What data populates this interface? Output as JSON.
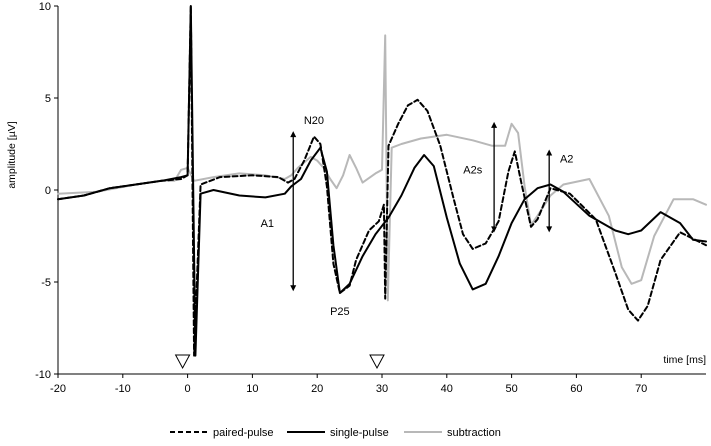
{
  "chart_data": {
    "type": "line",
    "xlabel": "time [ms]",
    "ylabel": "amplitude [µV]",
    "xlim": [
      -20,
      80
    ],
    "ylim": [
      -10,
      10
    ],
    "x_ticks": [
      -20,
      -10,
      0,
      10,
      20,
      30,
      40,
      50,
      60,
      70
    ],
    "y_ticks": [
      -10,
      -5,
      0,
      5,
      10
    ],
    "grid": false,
    "legend_position": "bottom",
    "stimulus_markers": [
      0,
      30
    ],
    "series": [
      {
        "name": "paired-pulse",
        "color": "#000000",
        "dash": "5,3",
        "points": [
          [
            -20,
            -0.5
          ],
          [
            -16,
            -0.3
          ],
          [
            -12,
            0.1
          ],
          [
            -8,
            0.3
          ],
          [
            -4,
            0.5
          ],
          [
            -1,
            0.6
          ],
          [
            0,
            0.8
          ],
          [
            0.5,
            10
          ],
          [
            1,
            -9
          ],
          [
            2,
            0.3
          ],
          [
            5,
            0.7
          ],
          [
            10,
            0.8
          ],
          [
            14,
            0.7
          ],
          [
            15.5,
            0.4
          ],
          [
            16.5,
            0.6
          ],
          [
            18,
            1.6
          ],
          [
            19.5,
            2.9
          ],
          [
            20.5,
            2.5
          ],
          [
            21.5,
            0.2
          ],
          [
            22.5,
            -4
          ],
          [
            23.5,
            -5.6
          ],
          [
            25,
            -5.2
          ],
          [
            26,
            -3.8
          ],
          [
            28,
            -2.2
          ],
          [
            29.5,
            -1.7
          ],
          [
            30.3,
            -0.8
          ],
          [
            30.5,
            -5.9
          ],
          [
            31,
            2.4
          ],
          [
            32.5,
            3.6
          ],
          [
            34,
            4.6
          ],
          [
            35.5,
            4.9
          ],
          [
            37,
            4.3
          ],
          [
            39,
            2.4
          ],
          [
            41,
            -0.4
          ],
          [
            42.5,
            -2.4
          ],
          [
            44,
            -3.2
          ],
          [
            46,
            -2.9
          ],
          [
            48,
            -1.7
          ],
          [
            49.5,
            1
          ],
          [
            50.5,
            2.1
          ],
          [
            51.5,
            0.4
          ],
          [
            53,
            -2
          ],
          [
            54,
            -1.6
          ],
          [
            56,
            0.1
          ],
          [
            59,
            -0.2
          ],
          [
            63,
            -1.6
          ],
          [
            66,
            -4.5
          ],
          [
            68,
            -6.5
          ],
          [
            69.5,
            -7.1
          ],
          [
            71,
            -6.3
          ],
          [
            73,
            -3.8
          ],
          [
            76,
            -2.3
          ],
          [
            80,
            -3
          ]
        ]
      },
      {
        "name": "single-pulse",
        "color": "#000000",
        "dash": "",
        "points": [
          [
            -20,
            -0.5
          ],
          [
            -16,
            -0.3
          ],
          [
            -12,
            0.1
          ],
          [
            -8,
            0.3
          ],
          [
            -4,
            0.5
          ],
          [
            -1,
            0.7
          ],
          [
            0,
            0.8
          ],
          [
            0.5,
            10
          ],
          [
            1.2,
            -9
          ],
          [
            2,
            -0.2
          ],
          [
            4,
            0
          ],
          [
            8,
            -0.3
          ],
          [
            12,
            -0.4
          ],
          [
            15,
            -0.2
          ],
          [
            16,
            0.2
          ],
          [
            17.5,
            0.6
          ],
          [
            19,
            1.6
          ],
          [
            20.5,
            2.3
          ],
          [
            21.5,
            1
          ],
          [
            22.5,
            -3
          ],
          [
            23.5,
            -5.6
          ],
          [
            25,
            -5.1
          ],
          [
            27,
            -3.6
          ],
          [
            29,
            -2.4
          ],
          [
            31,
            -1.5
          ],
          [
            33,
            -0.3
          ],
          [
            35,
            1.2
          ],
          [
            36.5,
            1.9
          ],
          [
            38,
            1.3
          ],
          [
            40,
            -1.5
          ],
          [
            42,
            -4
          ],
          [
            44,
            -5.4
          ],
          [
            46,
            -5.1
          ],
          [
            48,
            -3.6
          ],
          [
            50,
            -1.8
          ],
          [
            52,
            -0.5
          ],
          [
            54,
            0.1
          ],
          [
            56,
            0.3
          ],
          [
            58,
            -0.1
          ],
          [
            62,
            -1.4
          ],
          [
            66,
            -2.2
          ],
          [
            68,
            -2.4
          ],
          [
            70,
            -2.2
          ],
          [
            73,
            -1.2
          ],
          [
            76,
            -1.8
          ],
          [
            78,
            -2.7
          ],
          [
            80,
            -2.8
          ]
        ]
      },
      {
        "name": "subtraction",
        "color": "#b8b8b8",
        "dash": "",
        "points": [
          [
            -20,
            -0.2
          ],
          [
            -14,
            -0.1
          ],
          [
            -8,
            0.3
          ],
          [
            -4,
            0.5
          ],
          [
            -2,
            0.5
          ],
          [
            -1,
            1.1
          ],
          [
            0,
            1.2
          ],
          [
            1,
            0.5
          ],
          [
            4,
            0.7
          ],
          [
            8,
            0.9
          ],
          [
            12,
            0.8
          ],
          [
            15,
            0.6
          ],
          [
            16,
            0.8
          ],
          [
            17,
            1.2
          ],
          [
            18,
            1.5
          ],
          [
            19,
            1.8
          ],
          [
            20,
            1.6
          ],
          [
            21,
            1.2
          ],
          [
            22,
            0.6
          ],
          [
            23,
            0.1
          ],
          [
            24,
            0.8
          ],
          [
            25,
            1.9
          ],
          [
            26,
            1.2
          ],
          [
            27,
            0.4
          ],
          [
            29,
            0.9
          ],
          [
            30,
            1.1
          ],
          [
            30.5,
            8.4
          ],
          [
            30.9,
            -6
          ],
          [
            31.5,
            2.3
          ],
          [
            33,
            2.5
          ],
          [
            36,
            2.8
          ],
          [
            40,
            3
          ],
          [
            44,
            2.7
          ],
          [
            47,
            2.4
          ],
          [
            49,
            2.4
          ],
          [
            50,
            3.6
          ],
          [
            51,
            3.1
          ],
          [
            52,
            0.2
          ],
          [
            53,
            -1.9
          ],
          [
            54,
            -1.4
          ],
          [
            56,
            -0.3
          ],
          [
            58,
            0.3
          ],
          [
            62,
            0.6
          ],
          [
            65,
            -1.4
          ],
          [
            67,
            -4.2
          ],
          [
            68.5,
            -5.1
          ],
          [
            70,
            -4.9
          ],
          [
            72,
            -2.5
          ],
          [
            75,
            -0.5
          ],
          [
            78,
            -0.5
          ],
          [
            80,
            -0.8
          ]
        ]
      }
    ],
    "annotations": [
      {
        "text": "N20",
        "x": 19.5,
        "y": 3.6
      },
      {
        "text": "P25",
        "x": 23.5,
        "y": -6.8
      },
      {
        "text": "A1",
        "x": 12.3,
        "y": -2.0
      },
      {
        "text": "A2s",
        "x": 44.0,
        "y": 0.9
      },
      {
        "text": "A2",
        "x": 58.5,
        "y": 1.5
      }
    ],
    "arrows": [
      {
        "label": "A1",
        "x": 16.3,
        "y1": 3.2,
        "y2": -5.5
      },
      {
        "label": "A2s",
        "x": 47.3,
        "y1": 3.7,
        "y2": -2.3
      },
      {
        "label": "A2",
        "x": 55.8,
        "y1": 2.2,
        "y2": -2.3
      }
    ]
  }
}
